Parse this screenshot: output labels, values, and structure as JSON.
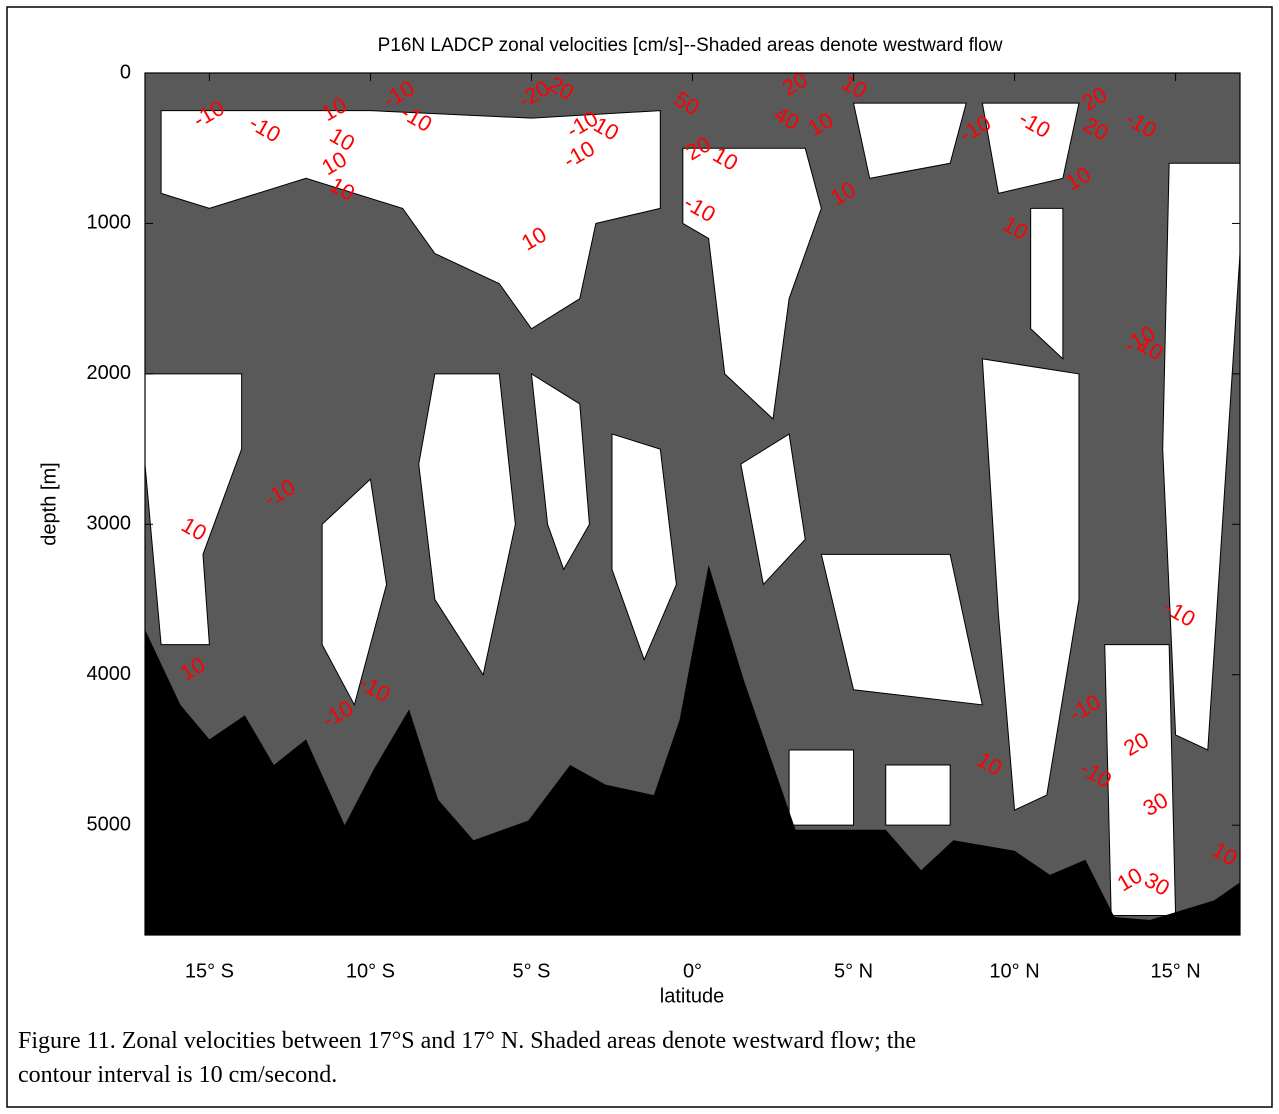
{
  "chart_data": {
    "type": "contour",
    "title": "P16N LADCP zonal velocities [cm/s]--Shaded areas denote westward flow",
    "xlabel": "latitude",
    "ylabel": "depth [m]",
    "xlim": [
      -17,
      17
    ],
    "ylim": [
      0,
      5730
    ],
    "y_inverted": true,
    "xticks": [
      {
        "value": -15,
        "label": "15° S"
      },
      {
        "value": -10,
        "label": "10° S"
      },
      {
        "value": -5,
        "label": "5° S"
      },
      {
        "value": 0,
        "label": "0°"
      },
      {
        "value": 5,
        "label": "5° N"
      },
      {
        "value": 10,
        "label": "10° N"
      },
      {
        "value": 15,
        "label": "15° N"
      }
    ],
    "yticks": [
      0,
      1000,
      2000,
      3000,
      4000,
      5000
    ],
    "westward_color": "#595959",
    "eastward_color": "#ffffff",
    "bottom_color": "#000000",
    "label_color": "#ff0000",
    "eastward_regions": [
      {
        "lat": [
          -16.5,
          -10,
          -5,
          -1,
          -1,
          -3,
          -3.5,
          -5,
          -6,
          -8,
          -9,
          -12,
          -15,
          -16.5
        ],
        "depth": [
          250,
          250,
          300,
          250,
          900,
          1000,
          1500,
          1700,
          1400,
          1200,
          900,
          700,
          900,
          800
        ]
      },
      {
        "lat": [
          -0.3,
          3.5,
          4,
          3,
          2.5,
          1,
          0.5,
          -0.3
        ],
        "depth": [
          500,
          500,
          900,
          1500,
          2300,
          2000,
          1100,
          1000
        ]
      },
      {
        "lat": [
          5,
          8.5,
          8,
          5.5
        ],
        "depth": [
          200,
          200,
          600,
          700
        ]
      },
      {
        "lat": [
          9,
          12,
          11.5,
          9.5
        ],
        "depth": [
          200,
          200,
          700,
          800
        ]
      },
      {
        "lat": [
          -17,
          -14,
          -14,
          -15.2,
          -15,
          -16.5,
          -17
        ],
        "depth": [
          2000,
          2000,
          2500,
          3200,
          3800,
          3800,
          2600
        ]
      },
      {
        "lat": [
          -11.5,
          -10,
          -9.5,
          -10.5,
          -11.5
        ],
        "depth": [
          3000,
          2700,
          3400,
          4200,
          3800
        ]
      },
      {
        "lat": [
          -8,
          -6,
          -5.5,
          -6.5,
          -8,
          -8.5
        ],
        "depth": [
          2000,
          2000,
          3000,
          4000,
          3500,
          2600
        ]
      },
      {
        "lat": [
          -5,
          -3.5,
          -3.2,
          -4,
          -4.5
        ],
        "depth": [
          2000,
          2200,
          3000,
          3300,
          3000
        ]
      },
      {
        "lat": [
          -2.5,
          -1,
          -0.5,
          -1.5,
          -2.5
        ],
        "depth": [
          2400,
          2500,
          3400,
          3900,
          3300
        ]
      },
      {
        "lat": [
          1.5,
          3,
          3.5,
          2.2
        ],
        "depth": [
          2600,
          2400,
          3100,
          3400
        ]
      },
      {
        "lat": [
          4,
          8,
          9,
          5
        ],
        "depth": [
          3200,
          3200,
          4200,
          4100
        ]
      },
      {
        "lat": [
          9,
          12,
          12,
          11,
          10,
          9.5
        ],
        "depth": [
          1900,
          2000,
          3500,
          4800,
          4900,
          3600
        ]
      },
      {
        "lat": [
          10.5,
          11.5,
          11.5,
          10.5
        ],
        "depth": [
          900,
          900,
          1900,
          1700
        ]
      },
      {
        "lat": [
          14.8,
          17,
          17,
          16,
          15,
          14.6
        ],
        "depth": [
          600,
          600,
          1200,
          4500,
          4400,
          2500
        ]
      },
      {
        "lat": [
          6,
          8,
          8,
          6
        ],
        "depth": [
          4600,
          4600,
          5000,
          5000
        ]
      },
      {
        "lat": [
          3,
          5,
          5,
          3
        ],
        "depth": [
          4500,
          4500,
          5000,
          5000
        ]
      },
      {
        "lat": [
          12.8,
          14.8,
          15,
          13
        ],
        "depth": [
          3800,
          3800,
          5600,
          5600
        ]
      }
    ],
    "bathymetry": {
      "lat": [
        -17,
        -15.9,
        -15,
        -13.9,
        -13,
        -12,
        -10.8,
        -9.9,
        -8.8,
        -7.9,
        -6.8,
        -5.1,
        -3.8,
        -2.7,
        -1.2,
        -0.4,
        0.5,
        1.6,
        3.2,
        6,
        7.1,
        8.1,
        10,
        11.1,
        12.2,
        13.1,
        14.2,
        16.2,
        17
      ],
      "depth": [
        3700,
        4200,
        4430,
        4270,
        4600,
        4430,
        5000,
        4630,
        4230,
        4830,
        5100,
        4970,
        4600,
        4730,
        4800,
        4300,
        3270,
        4040,
        5030,
        5030,
        5300,
        5100,
        5170,
        5330,
        5230,
        5610,
        5630,
        5500,
        5380
      ]
    },
    "contour_labels": [
      {
        "lat": -15,
        "depth": 280,
        "value": -10
      },
      {
        "lat": -13.3,
        "depth": 380,
        "value": -10
      },
      {
        "lat": -11.1,
        "depth": 250,
        "value": 10
      },
      {
        "lat": -10.9,
        "depth": 450,
        "value": 10
      },
      {
        "lat": -11.1,
        "depth": 610,
        "value": 10
      },
      {
        "lat": -10.9,
        "depth": 780,
        "value": 10
      },
      {
        "lat": -9.1,
        "depth": 150,
        "value": -10
      },
      {
        "lat": -8.6,
        "depth": 310,
        "value": -10
      },
      {
        "lat": -4.9,
        "depth": 150,
        "value": -20
      },
      {
        "lat": -4.1,
        "depth": 110,
        "value": 20
      },
      {
        "lat": -3.4,
        "depth": 350,
        "value": -10
      },
      {
        "lat": -2.7,
        "depth": 380,
        "value": 10
      },
      {
        "lat": -3.5,
        "depth": 550,
        "value": -10
      },
      {
        "lat": -0.2,
        "depth": 210,
        "value": 50
      },
      {
        "lat": 0.2,
        "depth": 510,
        "value": 20
      },
      {
        "lat": 1,
        "depth": 580,
        "value": 10
      },
      {
        "lat": 3.2,
        "depth": 80,
        "value": 20
      },
      {
        "lat": 2.9,
        "depth": 310,
        "value": 40
      },
      {
        "lat": 4,
        "depth": 350,
        "value": 10
      },
      {
        "lat": 5,
        "depth": 100,
        "value": 10
      },
      {
        "lat": 4.7,
        "depth": 810,
        "value": 10
      },
      {
        "lat": 0.2,
        "depth": 910,
        "value": -10
      },
      {
        "lat": -4.9,
        "depth": 1110,
        "value": 10
      },
      {
        "lat": 10,
        "depth": 1040,
        "value": 10
      },
      {
        "lat": 8.8,
        "depth": 380,
        "value": -10
      },
      {
        "lat": 10.6,
        "depth": 350,
        "value": -10
      },
      {
        "lat": 12.5,
        "depth": 180,
        "value": 20
      },
      {
        "lat": 12.5,
        "depth": 380,
        "value": 20
      },
      {
        "lat": 12,
        "depth": 710,
        "value": 10
      },
      {
        "lat": 13.9,
        "depth": 350,
        "value": -10
      },
      {
        "lat": 13.9,
        "depth": 1780,
        "value": -10
      },
      {
        "lat": 14.2,
        "depth": 1840,
        "value": 10
      },
      {
        "lat": -12.8,
        "depth": 2800,
        "value": -10
      },
      {
        "lat": -15.5,
        "depth": 3040,
        "value": 10
      },
      {
        "lat": -15.5,
        "depth": 3970,
        "value": 10
      },
      {
        "lat": -9.9,
        "depth": 4100,
        "value": -10
      },
      {
        "lat": -11,
        "depth": 4270,
        "value": -10
      },
      {
        "lat": 15.1,
        "depth": 3600,
        "value": -10
      },
      {
        "lat": 12.2,
        "depth": 4230,
        "value": -10
      },
      {
        "lat": 12.5,
        "depth": 4670,
        "value": -10
      },
      {
        "lat": 13.8,
        "depth": 4470,
        "value": 20
      },
      {
        "lat": 9.2,
        "depth": 4600,
        "value": 10
      },
      {
        "lat": 14.4,
        "depth": 4870,
        "value": 30
      },
      {
        "lat": 16.5,
        "depth": 5200,
        "value": 10
      },
      {
        "lat": 13.6,
        "depth": 5370,
        "value": 10
      },
      {
        "lat": 14.4,
        "depth": 5400,
        "value": 30
      }
    ]
  },
  "caption": {
    "lines": [
      "Figure 11. Zonal velocities between 17°S and 17° N. Shaded areas denote westward flow; the",
      "contour interval is 10 cm/second."
    ]
  }
}
